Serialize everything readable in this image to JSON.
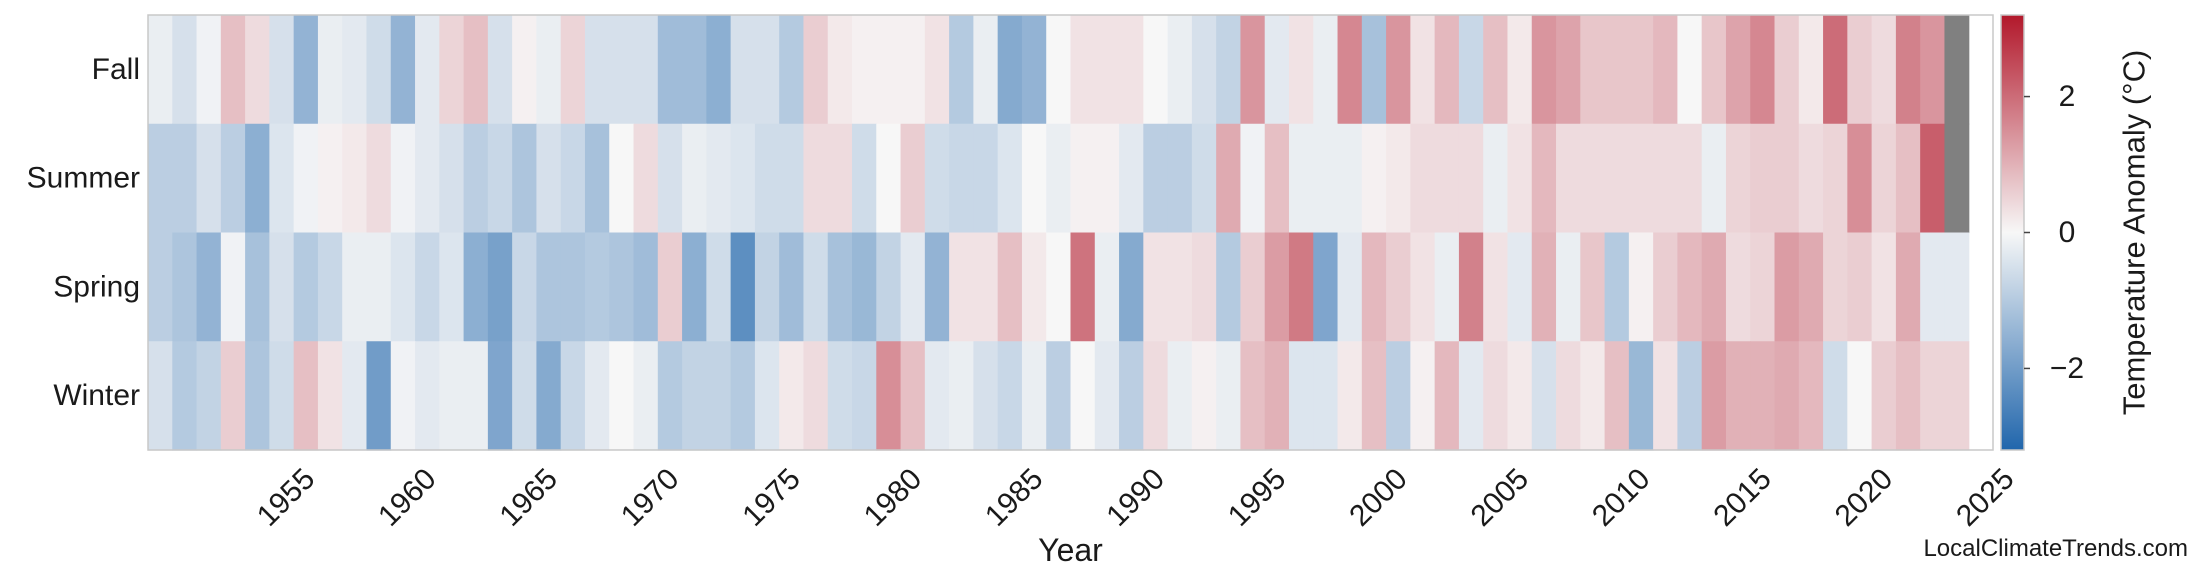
{
  "chart_data": {
    "type": "heatmap",
    "title": "",
    "xlabel": "Year",
    "ylabel": "",
    "rows": [
      "Fall",
      "Summer",
      "Spring",
      "Winter"
    ],
    "year_start": 1949,
    "year_end": 2024,
    "x_ticks": [
      "1955",
      "1960",
      "1965",
      "1970",
      "1975",
      "1980",
      "1985",
      "1990",
      "1995",
      "2000",
      "2005",
      "2010",
      "2015",
      "2020",
      "2025"
    ],
    "colorbar": {
      "label": "Temperature Anomaly (°C)",
      "range": [
        -3.2,
        3.2
      ],
      "ticks": [
        "2",
        "0",
        "−2"
      ],
      "tick_values": [
        2,
        0,
        -2
      ],
      "colors": {
        "cold": "#2166ac",
        "neutral": "#f7f7f7",
        "warm": "#b2182b",
        "missing": "#808080"
      }
    },
    "values": {
      "Fall": [
        -0.2,
        -0.5,
        -0.1,
        0.8,
        0.4,
        -0.5,
        -1.5,
        -0.2,
        -0.3,
        -0.6,
        -1.5,
        -0.3,
        0.5,
        0.8,
        -0.5,
        0.1,
        -0.2,
        0.5,
        -0.5,
        -0.5,
        -0.5,
        -1.3,
        -1.3,
        -1.6,
        -0.5,
        -0.5,
        -1.0,
        0.6,
        0.2,
        0.1,
        0.1,
        0.1,
        0.3,
        -1.0,
        -0.2,
        -1.7,
        -1.5,
        0.0,
        0.3,
        0.3,
        0.3,
        0.0,
        -0.2,
        -0.5,
        -0.8,
        1.4,
        -0.3,
        0.3,
        -0.2,
        1.6,
        -1.2,
        1.4,
        0.3,
        0.9,
        -0.7,
        0.8,
        0.2,
        1.4,
        1.2,
        0.7,
        0.7,
        0.7,
        0.9,
        0.0,
        0.7,
        1.2,
        1.6,
        0.6,
        0.2,
        2.0,
        0.6,
        0.4,
        1.7,
        1.4,
        null
      ],
      "Summer": [
        -0.9,
        -0.9,
        -0.5,
        -0.9,
        -1.6,
        -0.4,
        -0.1,
        0.1,
        0.2,
        0.4,
        -0.1,
        -0.3,
        -0.5,
        -0.9,
        -0.7,
        -1.1,
        -0.5,
        -0.7,
        -1.2,
        0.0,
        0.4,
        -0.5,
        -0.2,
        -0.3,
        -0.4,
        -0.6,
        -0.6,
        0.4,
        0.4,
        -0.6,
        0.0,
        0.6,
        -0.6,
        -0.7,
        -0.7,
        -0.4,
        0.0,
        -0.2,
        0.1,
        0.1,
        -0.3,
        -0.9,
        -0.9,
        -0.6,
        1.1,
        -0.1,
        0.8,
        -0.2,
        -0.2,
        -0.2,
        0.1,
        0.2,
        0.4,
        0.4,
        0.4,
        -0.2,
        0.3,
        0.9,
        0.4,
        0.4,
        0.4,
        0.4,
        0.4,
        0.4,
        -0.2,
        0.5,
        0.6,
        0.6,
        0.4,
        0.5,
        1.5,
        0.5,
        0.8,
        2.2,
        null
      ],
      "Spring": [
        -0.9,
        -1.1,
        -1.5,
        -0.1,
        -1.2,
        -0.5,
        -1.0,
        -0.7,
        -0.2,
        -0.2,
        -0.4,
        -0.7,
        -0.4,
        -1.6,
        -1.9,
        -0.7,
        -1.1,
        -1.1,
        -1.0,
        -1.1,
        -1.3,
        0.6,
        -1.6,
        -0.6,
        -2.3,
        -0.8,
        -1.3,
        -0.6,
        -1.2,
        -1.4,
        -0.8,
        -0.3,
        -1.5,
        0.3,
        0.3,
        0.8,
        0.2,
        0.0,
        1.9,
        -0.2,
        -1.7,
        0.3,
        0.3,
        0.4,
        -1.0,
        0.6,
        1.3,
        1.8,
        -1.8,
        -0.3,
        0.9,
        0.6,
        0.3,
        -0.2,
        1.7,
        0.3,
        -0.3,
        1.0,
        -0.2,
        0.7,
        -1.0,
        0.1,
        0.6,
        0.9,
        1.1,
        0.4,
        0.5,
        1.3,
        1.1,
        0.5,
        0.6,
        0.3,
        1.1,
        -0.3,
        -0.3
      ],
      "Winter": [
        -0.5,
        -1.0,
        -0.8,
        0.6,
        -1.1,
        -0.6,
        0.8,
        0.3,
        -0.3,
        -2.0,
        -0.1,
        -0.3,
        -0.2,
        -0.2,
        -1.8,
        -0.6,
        -1.7,
        -0.7,
        -0.3,
        0.0,
        -0.2,
        -1.0,
        -0.8,
        -0.8,
        -1.0,
        -0.4,
        0.2,
        0.4,
        -0.6,
        -0.7,
        1.5,
        0.8,
        -0.3,
        -0.2,
        -0.5,
        -0.7,
        -0.2,
        -0.9,
        0.0,
        -0.3,
        -0.9,
        0.4,
        -0.2,
        0.1,
        -0.2,
        0.8,
        1.0,
        -0.4,
        -0.4,
        0.2,
        0.8,
        -0.9,
        0.1,
        0.9,
        -0.3,
        0.4,
        0.2,
        -0.5,
        0.4,
        0.2,
        0.8,
        -1.4,
        0.3,
        -0.9,
        1.3,
        1.0,
        1.0,
        1.1,
        0.9,
        -0.6,
        0.0,
        0.6,
        0.8,
        0.5,
        0.5
      ]
    }
  },
  "watermark": "LocalClimateTrends.com"
}
